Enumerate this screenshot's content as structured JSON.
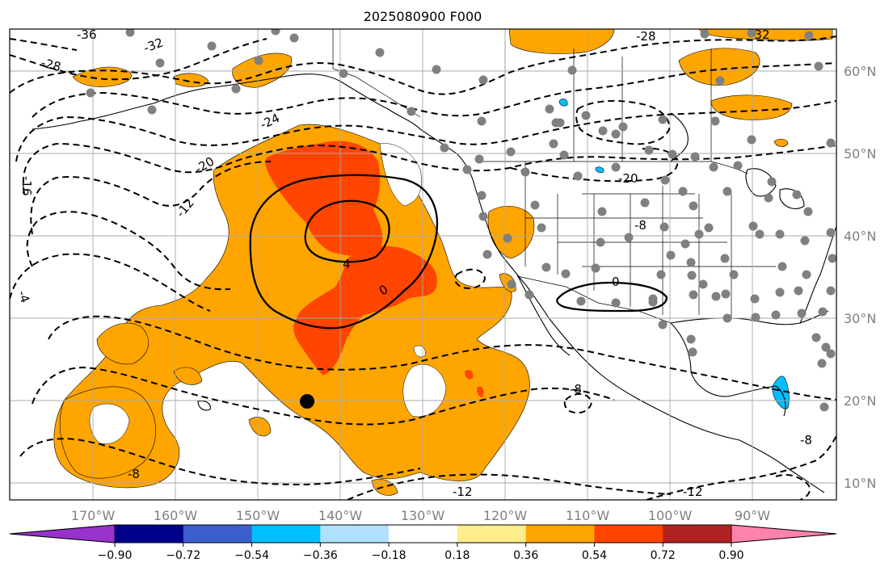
{
  "title": "2025080900 F000",
  "grid": {
    "lon_labels": [
      "170°W",
      "160°W",
      "150°W",
      "140°W",
      "130°W",
      "120°W",
      "110°W",
      "100°W",
      "90°W"
    ],
    "lat_labels": [
      "60°N",
      "50°N",
      "40°N",
      "30°N",
      "20°N",
      "10°N"
    ]
  },
  "colorbar": {
    "tick_labels": [
      "−0.90",
      "−0.72",
      "−0.54",
      "−0.36",
      "−0.18",
      "0.18",
      "0.36",
      "0.54",
      "0.72",
      "0.90"
    ],
    "colors": [
      "#9932cc",
      "#00008b",
      "#3a5fcd",
      "#00bfff",
      "#b0e2ff",
      "#ffffff",
      "#ffec8b",
      "#ffa500",
      "#ff4500",
      "#b22222",
      "#ff82ab"
    ]
  },
  "field_colors": {
    "orange": "#ffa500",
    "red": "#ff4500",
    "light_blue": "#00bfff"
  },
  "contour_labels": {
    "dashed": [
      "-36",
      "-32",
      "-28",
      "-28",
      "-32",
      "-24",
      "-20",
      "-16",
      "-12",
      "-20",
      "-8",
      "-8",
      "-8",
      "-12",
      "-12",
      "-4",
      "-8"
    ],
    "solid": [
      "4",
      "0",
      "0"
    ]
  },
  "station_marker": {
    "label": "buoy-marker"
  }
}
